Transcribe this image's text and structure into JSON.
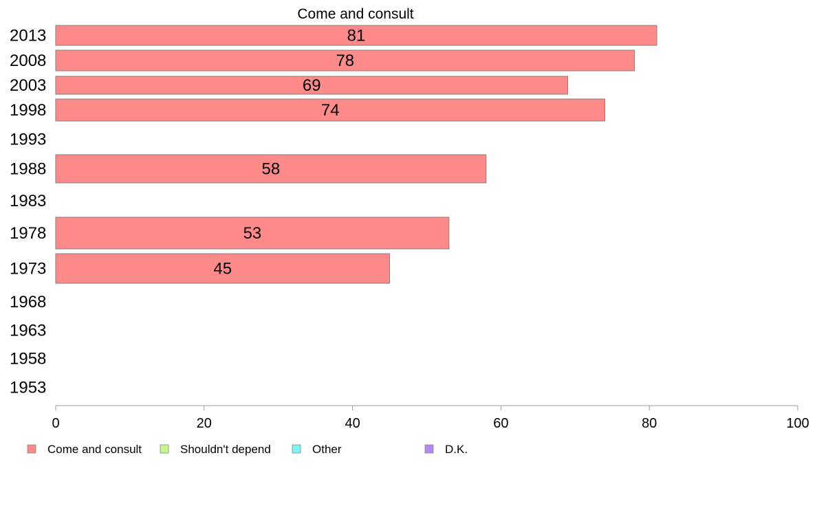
{
  "chart_data": {
    "type": "bar",
    "orientation": "horizontal",
    "title": "Come and consult",
    "categories": [
      "2013",
      "2008",
      "2003",
      "1998",
      "1993",
      "1988",
      "1983",
      "1978",
      "1973",
      "1968",
      "1963",
      "1958",
      "1953"
    ],
    "series": [
      {
        "name": "Come and consult",
        "color": "#ff8a8a",
        "values": [
          81,
          78,
          69,
          74,
          null,
          58,
          null,
          53,
          45,
          null,
          null,
          null,
          null
        ],
        "data_labels": [
          "81",
          "78",
          "69",
          "74",
          "",
          "58",
          "",
          "53",
          "45",
          "",
          "",
          "",
          ""
        ]
      }
    ],
    "xlim": [
      0,
      100
    ],
    "x_ticks": [
      "0",
      "20",
      "40",
      "60",
      "80",
      "100"
    ],
    "grid": false,
    "legend": {
      "placement": "bottom-left",
      "entries": [
        {
          "label": "Come and consult",
          "color": "#ff8a8a"
        },
        {
          "label": "Shouldn't depend",
          "color": "#c8f58a"
        },
        {
          "label": "Other",
          "color": "#80f5f0"
        },
        {
          "label": "D.K.",
          "color": "#b388f5"
        }
      ]
    }
  }
}
